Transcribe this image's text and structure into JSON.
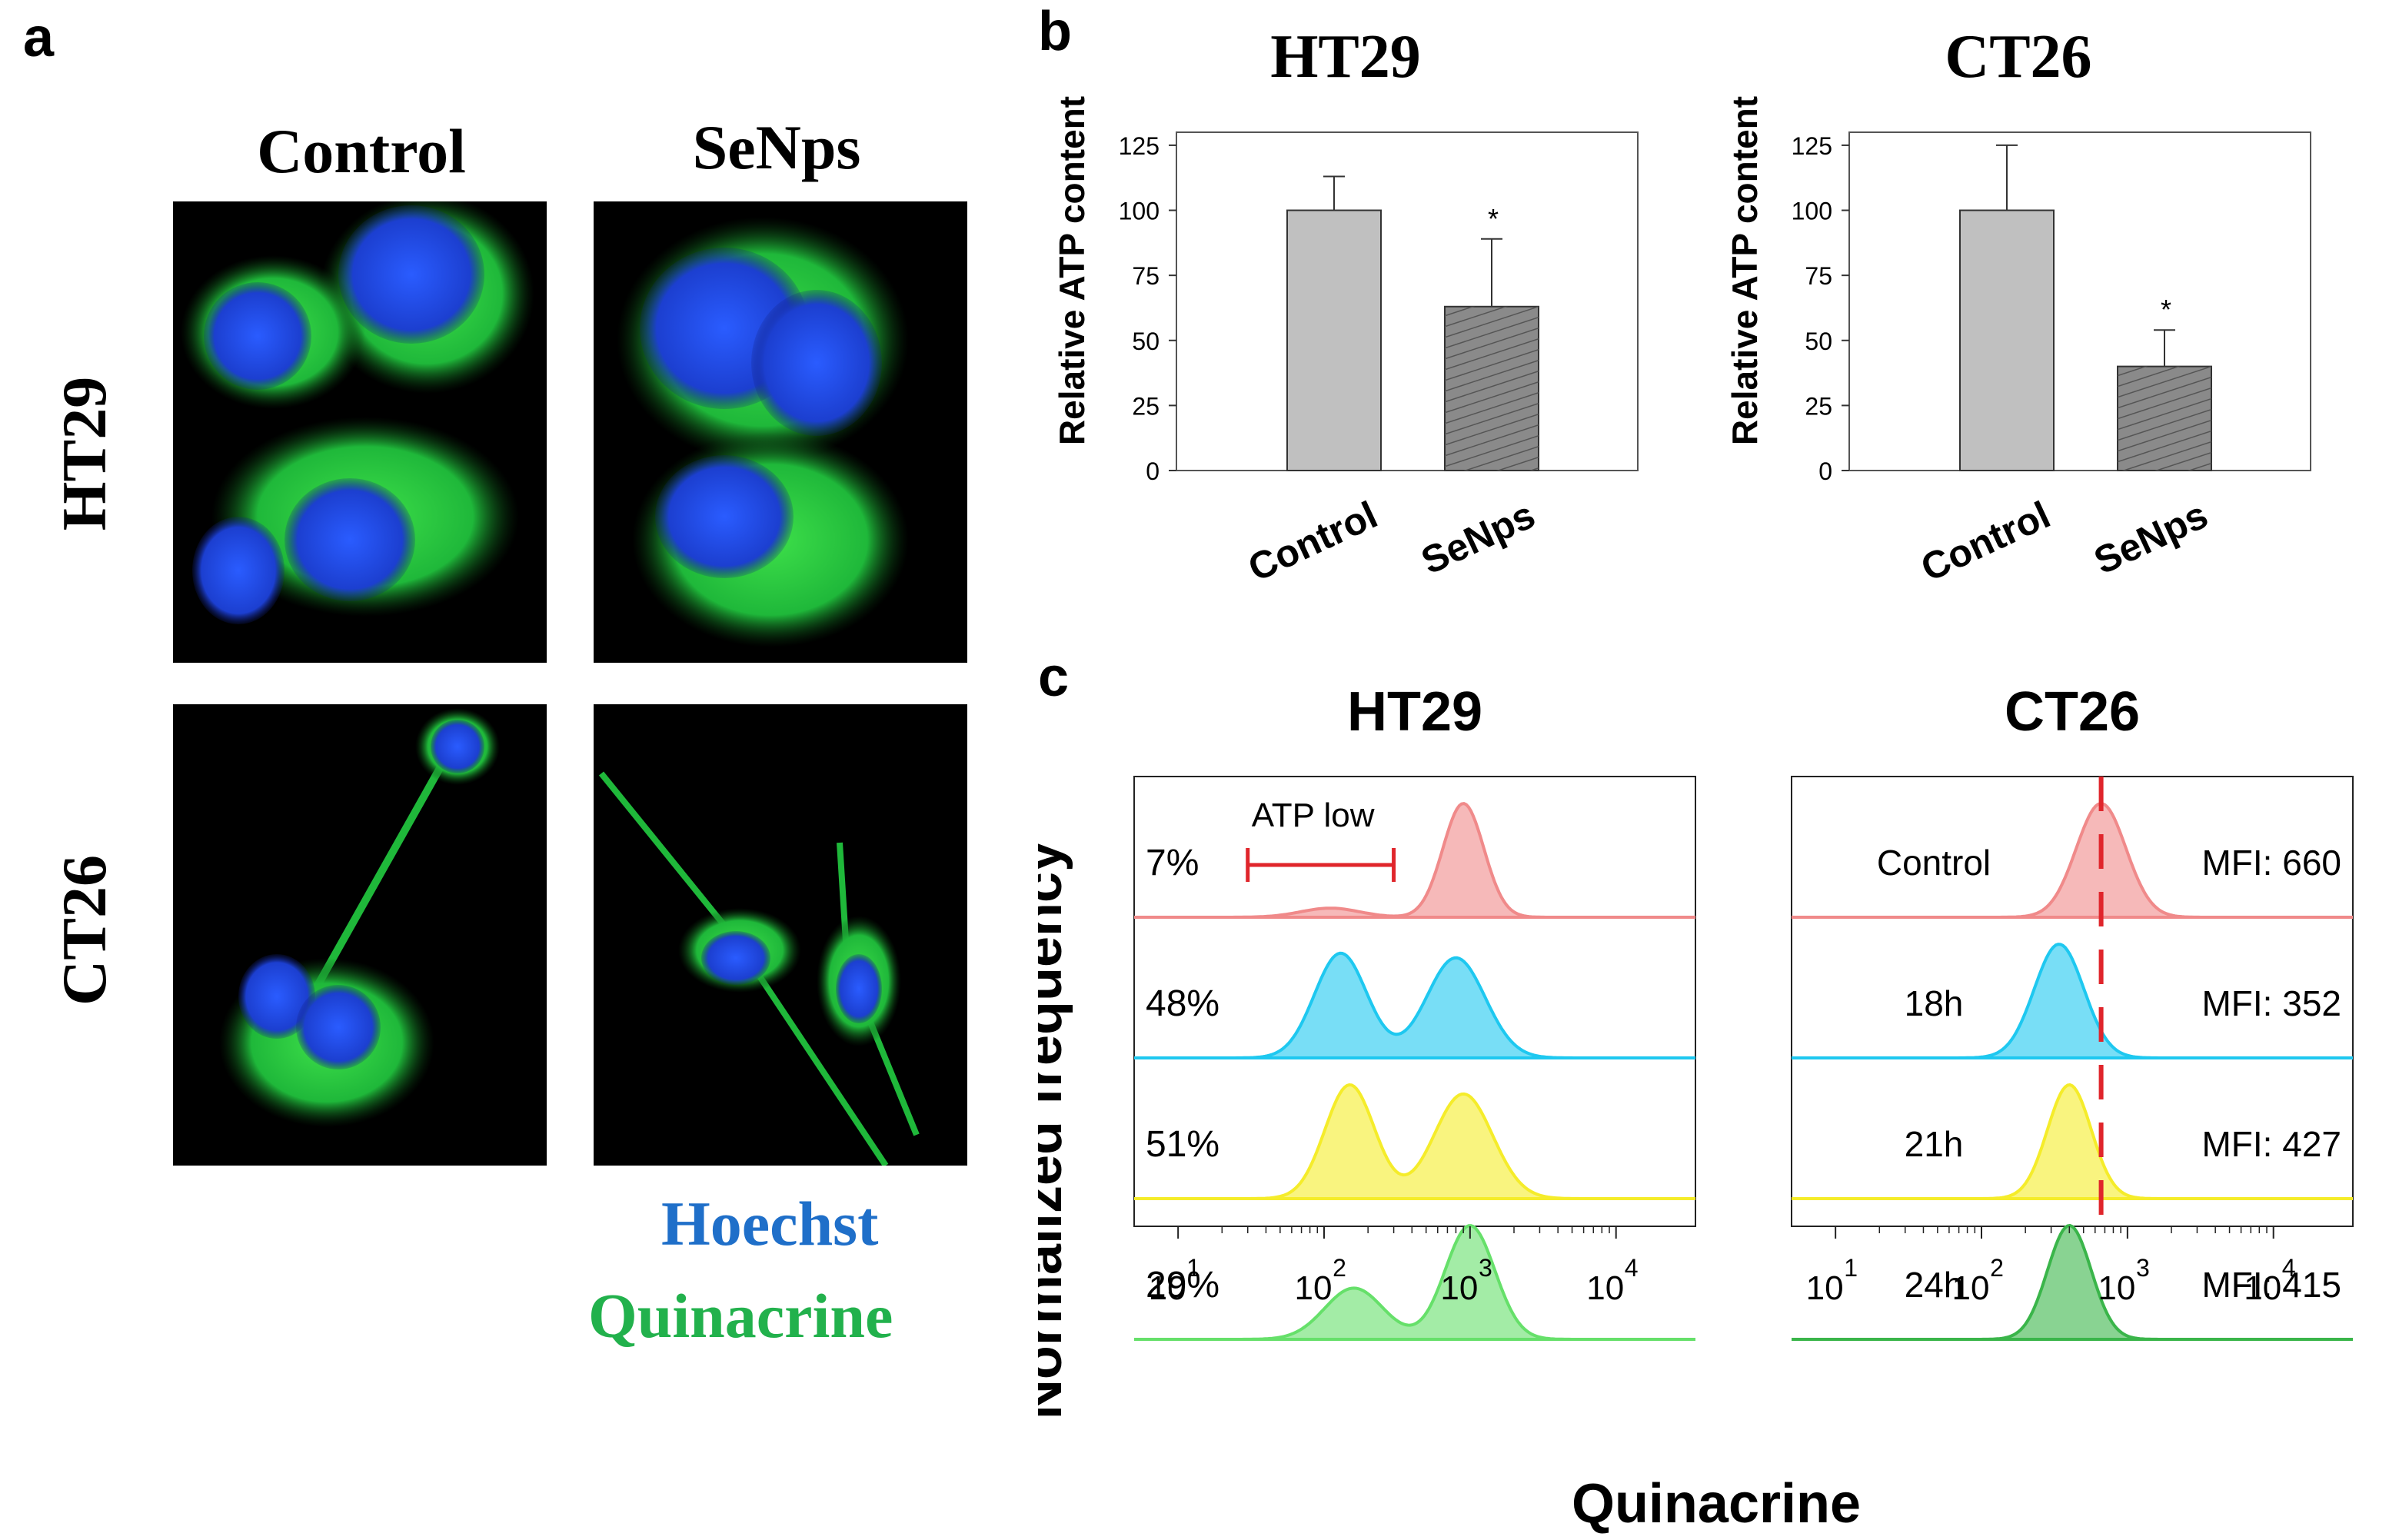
{
  "panels": {
    "a": "a",
    "b": "b",
    "c": "c"
  },
  "panel_a": {
    "col_headers": [
      "Control",
      "SeNps"
    ],
    "row_headers": [
      "HT29",
      "CT26"
    ],
    "legend": {
      "hoechst": "Hoechst",
      "quinacrine": "Quinacrine",
      "hoechst_color": "#1f6fc9",
      "quinacrine_color": "#22b14c"
    }
  },
  "chart_data": [
    {
      "type": "bar",
      "title": "HT29",
      "ylabel": "Relative ATP content",
      "categories": [
        "Control",
        "SeNps"
      ],
      "values": [
        100,
        63
      ],
      "errors": [
        13,
        26
      ],
      "significance": [
        "",
        "*"
      ],
      "ylim": [
        0,
        130
      ],
      "yticks": [
        0,
        25,
        50,
        75,
        100,
        125
      ],
      "colors": [
        "#c0c0c0",
        "#8a8a8a"
      ]
    },
    {
      "type": "bar",
      "title": "CT26",
      "ylabel": "Relative ATP content",
      "categories": [
        "Control",
        "SeNps"
      ],
      "values": [
        100,
        40
      ],
      "errors": [
        25,
        14
      ],
      "significance": [
        "",
        "*"
      ],
      "ylim": [
        0,
        130
      ],
      "yticks": [
        0,
        25,
        50,
        75,
        100,
        125
      ],
      "colors": [
        "#c0c0c0",
        "#8a8a8a"
      ]
    },
    {
      "type": "area",
      "title": "HT29",
      "ylabel": "Normalized frequency",
      "xlabel": "Quinacrine",
      "x_scale": "log",
      "xlim": [
        5,
        35000
      ],
      "xticks": [
        "10^1",
        "10^2",
        "10^3",
        "10^4"
      ],
      "gate": {
        "label": "ATP low",
        "range": [
          30,
          300
        ],
        "color": "#e0252b"
      },
      "series": [
        {
          "label": "7%",
          "color": "#f08a8a",
          "peaks": [
            [
              900,
              1.0,
              0.14
            ]
          ],
          "minor": [
            [
              110,
              0.08,
              0.2
            ]
          ]
        },
        {
          "label": "48%",
          "color": "#1ec8f0",
          "peaks": [
            [
              130,
              0.92,
              0.18
            ],
            [
              800,
              0.88,
              0.2
            ]
          ],
          "minor": []
        },
        {
          "label": "51%",
          "color": "#f5ec2a",
          "peaks": [
            [
              150,
              1.0,
              0.17
            ],
            [
              900,
              0.92,
              0.2
            ]
          ],
          "minor": []
        },
        {
          "label": "29%",
          "color": "#66e06a",
          "peaks": [
            [
              160,
              0.45,
              0.2
            ],
            [
              1000,
              1.0,
              0.17
            ]
          ],
          "minor": []
        }
      ]
    },
    {
      "type": "area",
      "title": "CT26",
      "xlabel": "Quinacrine",
      "x_scale": "log",
      "xlim": [
        5,
        35000
      ],
      "xticks": [
        "10^1",
        "10^2",
        "10^3",
        "10^4"
      ],
      "reference_line": {
        "x": 660,
        "color": "#e0252b",
        "style": "dashed"
      },
      "series": [
        {
          "label": "Control",
          "mfi": "MFI: 660",
          "color": "#f08a8a",
          "peaks": [
            [
              660,
              1.0,
              0.17
            ]
          ]
        },
        {
          "label": "18h",
          "mfi": "MFI: 352",
          "color": "#1ec8f0",
          "peaks": [
            [
              340,
              1.0,
              0.17
            ]
          ]
        },
        {
          "label": "21h",
          "mfi": "MFI: 427",
          "color": "#f5ec2a",
          "peaks": [
            [
              400,
              1.0,
              0.15
            ]
          ]
        },
        {
          "label": "24h",
          "mfi": "MFI: 415",
          "color": "#3ab54a",
          "peaks": [
            [
              400,
              1.0,
              0.15
            ]
          ]
        }
      ]
    }
  ]
}
